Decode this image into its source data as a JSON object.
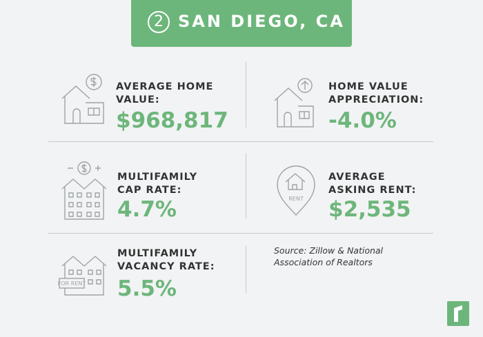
{
  "header": {
    "rank": "2",
    "title": "SAN DIEGO, CA"
  },
  "stats": [
    {
      "label_lines": [
        "AVERAGE HOME",
        "VALUE:"
      ],
      "value": "$968,817"
    },
    {
      "label_lines": [
        "HOME VALUE",
        "APPRECIATION:"
      ],
      "value": "-4.0%"
    },
    {
      "label_lines": [
        "MULTIFAMILY",
        "CAP RATE:"
      ],
      "value": "4.7%"
    },
    {
      "label_lines": [
        "AVERAGE",
        "ASKING RENT:"
      ],
      "value": "$2,535"
    },
    {
      "label_lines": [
        "MULTIFAMILY",
        "VACANCY RATE:"
      ],
      "value": "5.5%"
    }
  ],
  "source_lines": [
    "Source: Zillow & National",
    "Association of Realtors"
  ],
  "icon_texts": {
    "rent_pin": "RENT",
    "for_rent_sign": "FOR RENT"
  }
}
